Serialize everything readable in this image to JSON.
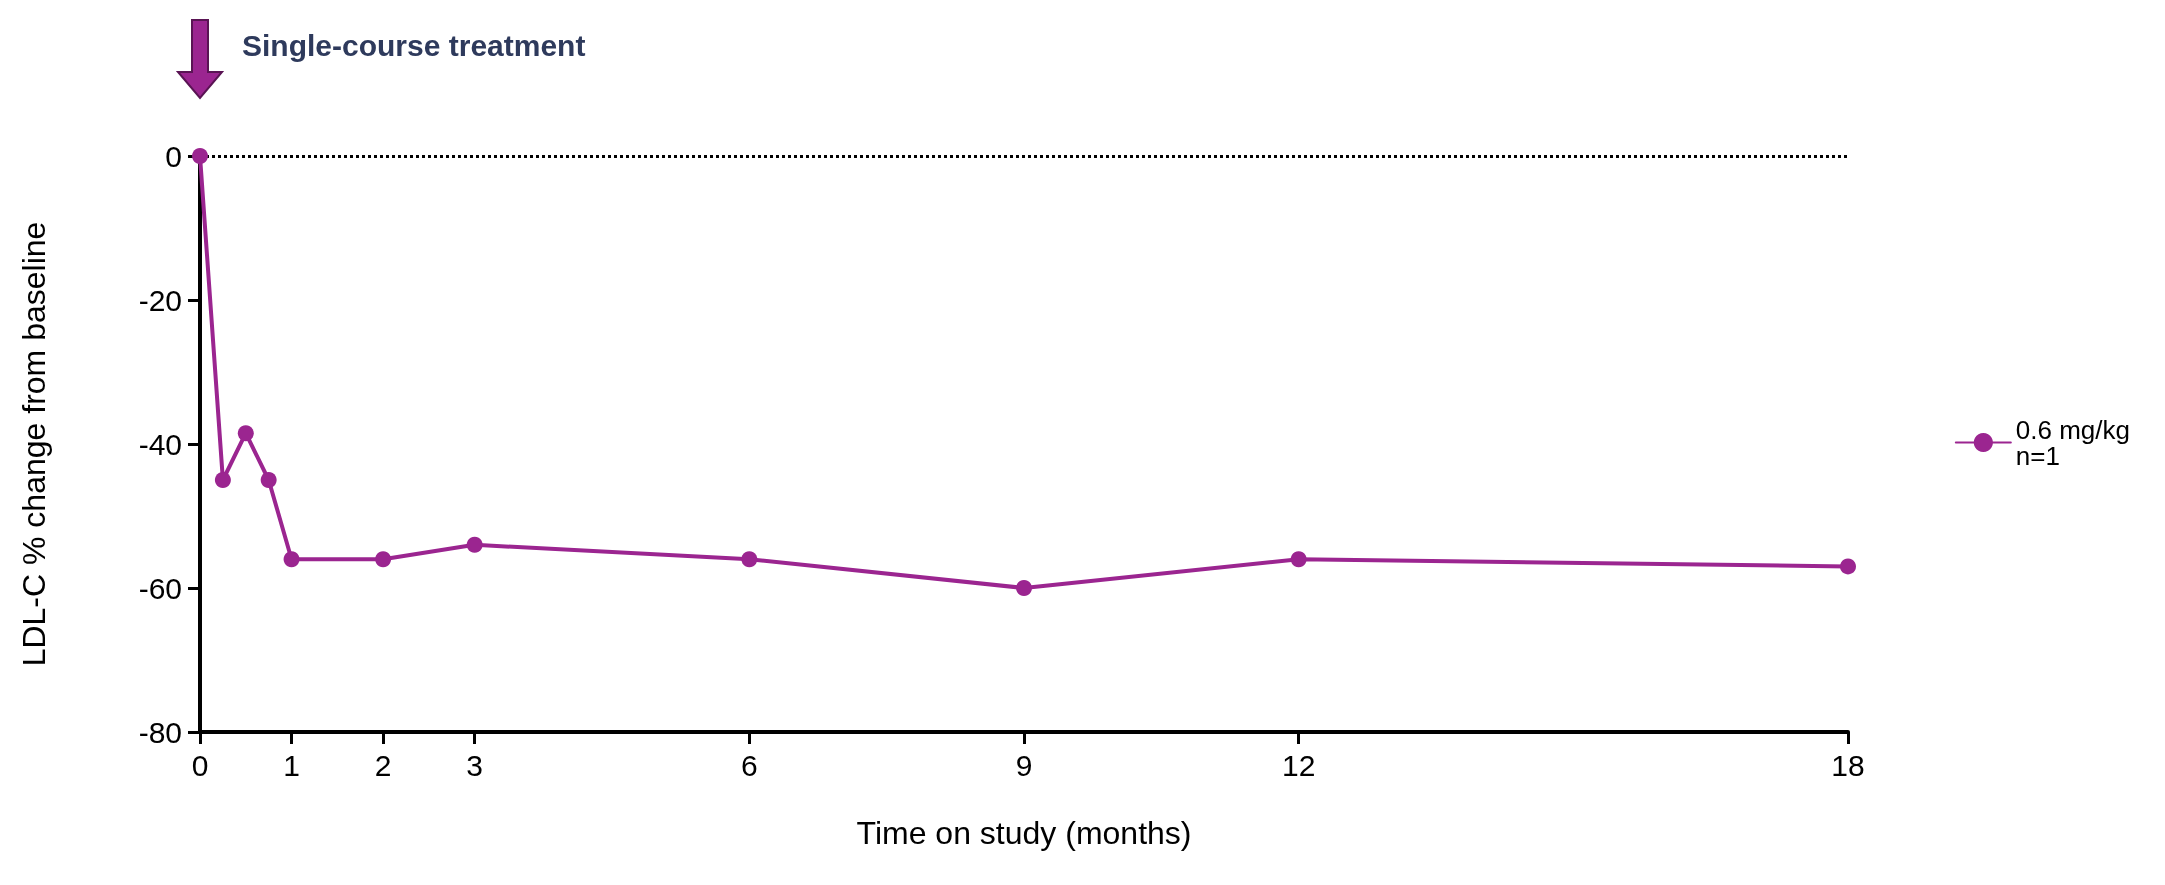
{
  "chart_data": {
    "type": "line",
    "xlabel": "Time on study (months)",
    "ylabel": "LDL-C % change from baseline",
    "annotations": [
      "Single-course treatment"
    ],
    "series": [
      {
        "name": "0.6 mg/kg\nn=1",
        "color": "#9b2590",
        "x": [
          0,
          0.25,
          0.5,
          0.75,
          1,
          2,
          3,
          6,
          9,
          12,
          18
        ],
        "values": [
          0,
          -45,
          -38.5,
          -45,
          -56,
          -56,
          -54,
          -56,
          -60,
          -56,
          -57
        ]
      }
    ],
    "xlim": [
      0,
      18
    ],
    "xticks": [
      0,
      1,
      2,
      3,
      6,
      9,
      12,
      18
    ],
    "ylim": [
      -80,
      0
    ],
    "yticks": [
      -80,
      -60,
      -40,
      -20,
      0
    ],
    "ref_lines": [
      {
        "axis": "y",
        "value": 0,
        "color": "#000000",
        "line_style": "dotted"
      }
    ],
    "grid": false,
    "legend": "right",
    "marker": "circle",
    "line_style": "solid"
  }
}
